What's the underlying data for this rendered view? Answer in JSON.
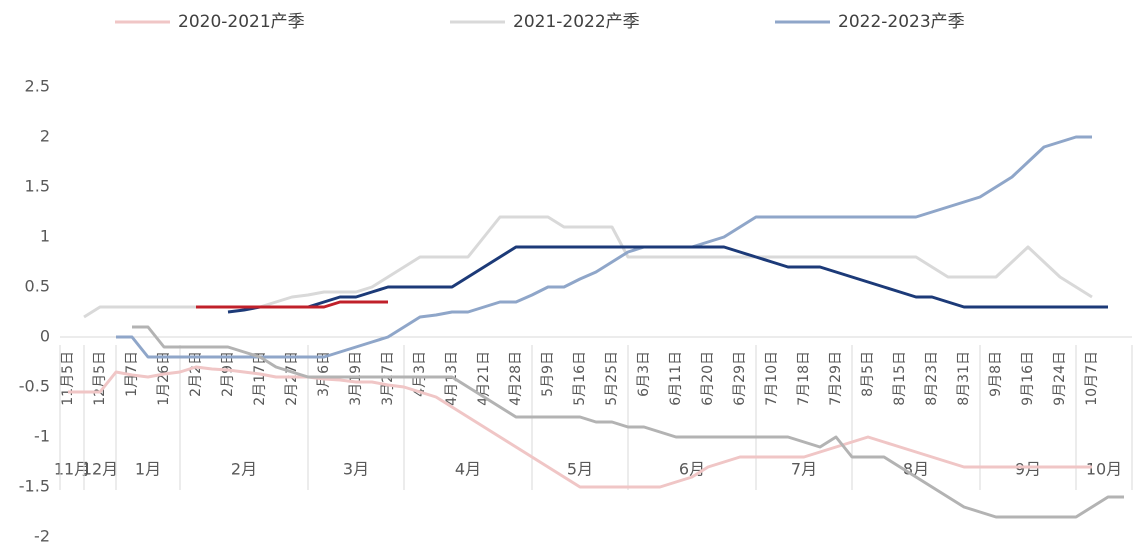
{
  "chart_data": {
    "type": "line",
    "categories": [
      "11月5日",
      null,
      "12月5日",
      null,
      "1月7日",
      null,
      "1月26日",
      null,
      "2月2日",
      null,
      "2月9日",
      null,
      "2月17日",
      null,
      "2月27日",
      null,
      "3月6日",
      null,
      "3月19日",
      null,
      "3月27日",
      null,
      "4月3日",
      null,
      "4月13日",
      null,
      "4月21日",
      null,
      "4月28日",
      null,
      "5月9日",
      null,
      "5月16日",
      null,
      "5月25日",
      null,
      "6月3日",
      null,
      "6月11日",
      null,
      "6月20日",
      null,
      "6月29日",
      null,
      "7月10日",
      null,
      "7月18日",
      null,
      "7月29日",
      null,
      "8月5日",
      null,
      "8月15日",
      null,
      "8月23日",
      null,
      "8月31日",
      null,
      "9月8日",
      null,
      "9月16日",
      null,
      "9月24日",
      null,
      "10月7日",
      null,
      null
    ],
    "month_groups": [
      "11月",
      "12月",
      "1月",
      "2月",
      "3月",
      "4月",
      "5月",
      "6月",
      "7月",
      "8月",
      "9月",
      "10月"
    ],
    "ylim": [
      -2,
      2.5
    ],
    "yticks": [
      -2,
      -1.5,
      -1,
      -0.5,
      0,
      0.5,
      1,
      1.5,
      2,
      2.5
    ],
    "grid": false,
    "legend": "top",
    "series": [
      {
        "name": "2020-2021产季",
        "color": "#f0c6c6",
        "values": [
          -0.55,
          -0.55,
          -0.55,
          -0.35,
          -0.38,
          -0.4,
          -0.37,
          -0.35,
          -0.3,
          -0.32,
          -0.33,
          -0.35,
          -0.37,
          -0.4,
          -0.4,
          -0.4,
          -0.42,
          -0.43,
          -0.45,
          -0.45,
          -0.48,
          -0.5,
          -0.55,
          -0.6,
          -0.7,
          -0.8,
          -0.9,
          -1.0,
          -1.1,
          -1.2,
          -1.3,
          -1.4,
          -1.5,
          -1.5,
          -1.5,
          -1.5,
          -1.5,
          -1.5,
          -1.45,
          -1.4,
          -1.3,
          -1.25,
          -1.2,
          -1.2,
          -1.2,
          -1.2,
          -1.2,
          -1.15,
          -1.1,
          -1.05,
          -1.0,
          -1.05,
          -1.1,
          -1.15,
          -1.2,
          -1.25,
          -1.3,
          -1.3,
          -1.3,
          -1.3,
          -1.3,
          -1.3,
          -1.3,
          -1.3,
          -1.3,
          null,
          null
        ]
      },
      {
        "name": "2021-2022产季",
        "color": "#d9d9d9",
        "values": [
          null,
          0.2,
          0.3,
          0.3,
          0.3,
          0.3,
          0.3,
          0.3,
          0.3,
          0.3,
          0.3,
          0.3,
          0.3,
          0.35,
          0.4,
          0.42,
          0.45,
          0.45,
          0.45,
          0.5,
          0.6,
          0.7,
          0.8,
          0.8,
          0.8,
          0.8,
          1.0,
          1.2,
          1.2,
          1.2,
          1.2,
          1.1,
          1.1,
          1.1,
          1.1,
          0.8,
          0.8,
          0.8,
          0.8,
          0.8,
          0.8,
          0.8,
          0.8,
          0.8,
          0.8,
          0.8,
          0.8,
          0.8,
          0.8,
          0.8,
          0.8,
          0.8,
          0.8,
          0.8,
          0.7,
          0.6,
          0.6,
          0.6,
          0.6,
          0.75,
          0.9,
          0.75,
          0.6,
          0.5,
          0.4,
          null,
          null
        ]
      },
      {
        "name": "2022-2023产季",
        "color": "#8fa6c9",
        "values": [
          null,
          null,
          null,
          0,
          0,
          -0.2,
          -0.2,
          -0.2,
          -0.2,
          -0.2,
          -0.2,
          -0.2,
          -0.2,
          -0.2,
          -0.2,
          -0.2,
          -0.2,
          -0.15,
          -0.1,
          -0.05,
          0,
          0.1,
          0.2,
          0.22,
          0.25,
          0.25,
          0.3,
          0.35,
          0.35,
          0.42,
          0.5,
          0.5,
          0.58,
          0.65,
          0.75,
          0.85,
          0.9,
          0.9,
          0.9,
          0.9,
          0.95,
          1.0,
          1.1,
          1.2,
          1.2,
          1.2,
          1.2,
          1.2,
          1.2,
          1.2,
          1.2,
          1.2,
          1.2,
          1.2,
          1.25,
          1.3,
          1.35,
          1.4,
          1.5,
          1.6,
          1.75,
          1.9,
          1.95,
          2.0,
          2.0,
          null,
          null
        ]
      },
      {
        "color": "#b3b3b3",
        "values": [
          null,
          null,
          null,
          null,
          0.1,
          0.1,
          -0.1,
          -0.1,
          -0.1,
          -0.1,
          -0.1,
          -0.15,
          -0.2,
          -0.3,
          -0.35,
          -0.4,
          -0.4,
          -0.4,
          -0.4,
          -0.4,
          -0.4,
          -0.4,
          -0.4,
          -0.4,
          -0.4,
          -0.5,
          -0.6,
          -0.7,
          -0.8,
          -0.8,
          -0.8,
          -0.8,
          -0.8,
          -0.85,
          -0.85,
          -0.9,
          -0.9,
          -0.95,
          -1.0,
          -1.0,
          -1.0,
          -1.0,
          -1.0,
          -1.0,
          -1.0,
          -1.0,
          -1.05,
          -1.1,
          -1.0,
          -1.2,
          -1.2,
          -1.2,
          -1.3,
          -1.4,
          -1.5,
          -1.6,
          -1.7,
          -1.75,
          -1.8,
          -1.8,
          -1.8,
          -1.8,
          -1.8,
          -1.8,
          -1.7,
          -1.6,
          -1.6
        ]
      },
      {
        "color": "#1c3a78",
        "values": [
          null,
          null,
          null,
          null,
          null,
          null,
          null,
          null,
          null,
          null,
          0.25,
          0.27,
          0.3,
          0.3,
          0.3,
          0.3,
          0.35,
          0.4,
          0.4,
          0.45,
          0.5,
          0.5,
          0.5,
          0.5,
          0.5,
          0.6,
          0.7,
          0.8,
          0.9,
          0.9,
          0.9,
          0.9,
          0.9,
          0.9,
          0.9,
          0.9,
          0.9,
          0.9,
          0.9,
          0.9,
          0.9,
          0.9,
          0.85,
          0.8,
          0.75,
          0.7,
          0.7,
          0.7,
          0.65,
          0.6,
          0.55,
          0.5,
          0.45,
          0.4,
          0.4,
          0.35,
          0.3,
          0.3,
          0.3,
          0.3,
          0.3,
          0.3,
          0.3,
          0.3,
          0.3,
          0.3,
          null
        ]
      },
      {
        "color": "#c0202a",
        "values": [
          null,
          null,
          null,
          null,
          null,
          null,
          null,
          null,
          0.3,
          0.3,
          0.3,
          0.3,
          0.3,
          0.3,
          0.3,
          0.3,
          0.3,
          0.35,
          0.35,
          0.35,
          0.35,
          null,
          null,
          null,
          null,
          null,
          null,
          null,
          null,
          null,
          null,
          null,
          null,
          null,
          null,
          null,
          null,
          null,
          null,
          null,
          null,
          null,
          null,
          null,
          null,
          null,
          null,
          null,
          null,
          null,
          null,
          null,
          null,
          null,
          null,
          null,
          null,
          null,
          null,
          null,
          null,
          null,
          null,
          null,
          null,
          null,
          null
        ]
      }
    ]
  }
}
